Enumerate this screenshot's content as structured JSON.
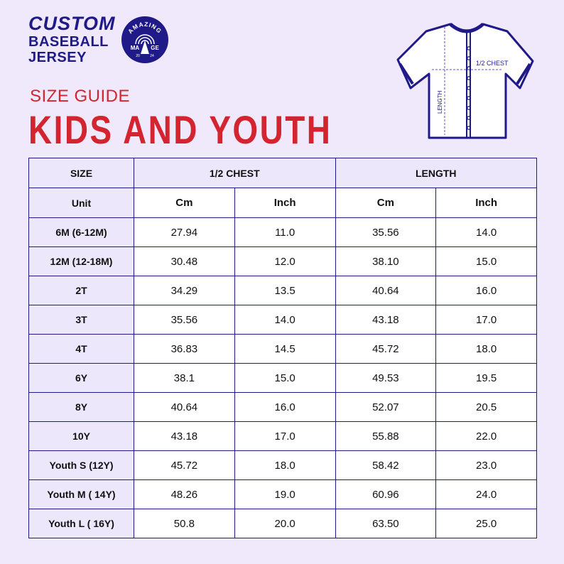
{
  "brand": {
    "line1": "CUSTOM",
    "line2": "BASEBALL",
    "line3": "JERSEY"
  },
  "logo": {
    "word_top": "AMAZING",
    "left": "MA",
    "right": "GE",
    "year_left": "20",
    "year_right": "24"
  },
  "heading": {
    "small": "SIZE GUIDE",
    "large": "KIDS AND YOUTH"
  },
  "diagram": {
    "chest_label": "1/2 CHEST",
    "length_label": "LENGTH"
  },
  "colors": {
    "background": "#efe9fb",
    "navy": "#1f1a88",
    "red": "#d4242f"
  },
  "table": {
    "header": {
      "size": "SIZE",
      "chest": "1/2 CHEST",
      "length": "LENGTH"
    },
    "units": {
      "label": "Unit",
      "chest_cm": "Cm",
      "chest_inch": "Inch",
      "length_cm": "Cm",
      "length_inch": "Inch"
    },
    "rows": [
      {
        "size": "6M (6-12M)",
        "chest_cm": "27.94",
        "chest_inch": "11.0",
        "length_cm": "35.56",
        "length_inch": "14.0"
      },
      {
        "size": "12M (12-18M)",
        "chest_cm": "30.48",
        "chest_inch": "12.0",
        "length_cm": "38.10",
        "length_inch": "15.0"
      },
      {
        "size": "2T",
        "chest_cm": "34.29",
        "chest_inch": "13.5",
        "length_cm": "40.64",
        "length_inch": "16.0"
      },
      {
        "size": "3T",
        "chest_cm": "35.56",
        "chest_inch": "14.0",
        "length_cm": "43.18",
        "length_inch": "17.0"
      },
      {
        "size": "4T",
        "chest_cm": "36.83",
        "chest_inch": "14.5",
        "length_cm": "45.72",
        "length_inch": "18.0"
      },
      {
        "size": "6Y",
        "chest_cm": "38.1",
        "chest_inch": "15.0",
        "length_cm": "49.53",
        "length_inch": "19.5"
      },
      {
        "size": "8Y",
        "chest_cm": "40.64",
        "chest_inch": "16.0",
        "length_cm": "52.07",
        "length_inch": "20.5"
      },
      {
        "size": "10Y",
        "chest_cm": "43.18",
        "chest_inch": "17.0",
        "length_cm": "55.88",
        "length_inch": "22.0"
      },
      {
        "size": "Youth S (12Y)",
        "chest_cm": "45.72",
        "chest_inch": "18.0",
        "length_cm": "58.42",
        "length_inch": "23.0"
      },
      {
        "size": "Youth M ( 14Y)",
        "chest_cm": "48.26",
        "chest_inch": "19.0",
        "length_cm": "60.96",
        "length_inch": "24.0"
      },
      {
        "size": "Youth L ( 16Y)",
        "chest_cm": "50.8",
        "chest_inch": "20.0",
        "length_cm": "63.50",
        "length_inch": "25.0"
      }
    ]
  }
}
